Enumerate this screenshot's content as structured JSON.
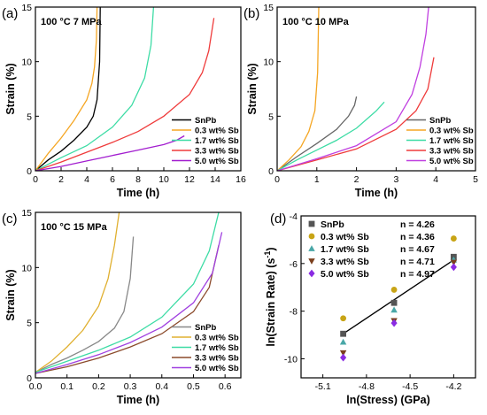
{
  "figure": {
    "background": "#ffffff",
    "line_color": "#000000"
  },
  "chart_data": [
    {
      "panel": "(a)",
      "type": "line",
      "annotation": "100 °C 7 MPa",
      "xlabel": "Time (h)",
      "ylabel": "Strain (%)",
      "xlim": [
        0,
        16
      ],
      "ylim": [
        0,
        15
      ],
      "xticks": [
        0,
        2,
        4,
        6,
        8,
        10,
        12,
        14,
        16
      ],
      "yticks": [
        0,
        5,
        10,
        15
      ],
      "legend_position": "lower-right",
      "series": [
        {
          "name": "SnPb",
          "color": "#000000",
          "x": [
            0,
            1,
            2,
            3,
            4,
            4.5,
            4.8,
            5.0,
            5.05
          ],
          "y": [
            0,
            1.0,
            1.8,
            2.8,
            4.0,
            5.0,
            6.5,
            10.0,
            15.0
          ]
        },
        {
          "name": "0.3 wt% Sb",
          "color": "#f5a623",
          "x": [
            0,
            1,
            2,
            3,
            4,
            4.4,
            4.6,
            4.75,
            4.8
          ],
          "y": [
            0,
            1.6,
            3.0,
            4.6,
            6.5,
            8.0,
            9.5,
            12.0,
            15.0
          ]
        },
        {
          "name": "1.7 wt% Sb",
          "color": "#3ddca5",
          "x": [
            0,
            2,
            4,
            6,
            7.5,
            8.5,
            9.0,
            9.2
          ],
          "y": [
            0,
            1.2,
            2.3,
            4.0,
            6.0,
            8.5,
            11.5,
            15.0
          ]
        },
        {
          "name": "3.3 wt% Sb",
          "color": "#ef3b3b",
          "x": [
            0,
            2,
            4,
            6,
            8,
            10,
            12,
            13,
            13.5,
            13.9
          ],
          "y": [
            0,
            0.8,
            1.7,
            2.6,
            3.6,
            5.0,
            7.0,
            9.0,
            11.0,
            14.0
          ]
        },
        {
          "name": "5.0 wt% Sb",
          "color": "#a21dcf",
          "x": [
            0,
            2,
            4,
            6,
            8,
            10,
            11,
            11.6
          ],
          "y": [
            0,
            0.4,
            0.9,
            1.4,
            1.9,
            2.4,
            2.8,
            3.2
          ]
        }
      ]
    },
    {
      "panel": "(b)",
      "type": "line",
      "annotation": "100 °C 10 MPa",
      "xlabel": "Time (h)",
      "ylabel": "Strain (%)",
      "xlim": [
        0,
        5
      ],
      "ylim": [
        0,
        15
      ],
      "xticks": [
        0,
        1,
        2,
        3,
        4,
        5
      ],
      "yticks": [
        0,
        5,
        10,
        15
      ],
      "legend_position": "lower-right",
      "series": [
        {
          "name": "SnPb",
          "color": "#666666",
          "x": [
            0,
            0.5,
            1.0,
            1.5,
            1.8,
            1.95,
            2.0
          ],
          "y": [
            0,
            1.3,
            2.5,
            3.8,
            5.0,
            6.0,
            6.8
          ]
        },
        {
          "name": "0.3 wt% Sb",
          "color": "#f5a623",
          "x": [
            0,
            0.3,
            0.6,
            0.8,
            0.95,
            1.02,
            1.05
          ],
          "y": [
            0,
            1.0,
            2.2,
            3.6,
            5.5,
            9.0,
            15.0
          ]
        },
        {
          "name": "1.7 wt% Sb",
          "color": "#3ddca5",
          "x": [
            0,
            0.5,
            1.0,
            1.5,
            2.0,
            2.5,
            2.7
          ],
          "y": [
            0,
            1.0,
            1.9,
            2.8,
            3.9,
            5.5,
            6.3
          ]
        },
        {
          "name": "3.3 wt% Sb",
          "color": "#ef3b3b",
          "x": [
            0,
            1,
            2,
            3,
            3.5,
            3.8,
            3.95
          ],
          "y": [
            0,
            1.0,
            2.0,
            3.8,
            5.5,
            7.5,
            10.4
          ]
        },
        {
          "name": "5.0 wt% Sb",
          "color": "#c040e0",
          "x": [
            0,
            1,
            2,
            3,
            3.4,
            3.6,
            3.75,
            3.82
          ],
          "y": [
            0,
            1.1,
            2.3,
            4.5,
            7.0,
            9.5,
            12.5,
            15.0
          ]
        }
      ]
    },
    {
      "panel": "(c)",
      "type": "line",
      "annotation": "100 °C 15 MPa",
      "xlabel": "Time (h)",
      "ylabel": "Strain (%)",
      "xlim": [
        0,
        0.65
      ],
      "ylim": [
        0,
        15
      ],
      "xticks": [
        0.0,
        0.1,
        0.2,
        0.3,
        0.4,
        0.5,
        0.6
      ],
      "yticks": [
        0,
        5,
        10,
        15
      ],
      "legend_position": "lower-right",
      "series": [
        {
          "name": "SnPb",
          "color": "#888888",
          "x": [
            0,
            0.05,
            0.1,
            0.15,
            0.2,
            0.25,
            0.28,
            0.3,
            0.31
          ],
          "y": [
            0.5,
            1.2,
            1.8,
            2.5,
            3.3,
            4.5,
            6.0,
            9.0,
            12.8
          ]
        },
        {
          "name": "0.3 wt% Sb",
          "color": "#e0b030",
          "x": [
            0,
            0.05,
            0.1,
            0.15,
            0.2,
            0.23,
            0.25,
            0.265
          ],
          "y": [
            0.5,
            1.5,
            2.8,
            4.3,
            6.5,
            9.0,
            12.0,
            15.0
          ]
        },
        {
          "name": "1.7 wt% Sb",
          "color": "#3ddca5",
          "x": [
            0,
            0.1,
            0.2,
            0.3,
            0.4,
            0.5,
            0.55,
            0.58
          ],
          "y": [
            0.5,
            1.5,
            2.5,
            3.7,
            5.5,
            8.5,
            11.5,
            15.0
          ]
        },
        {
          "name": "3.3 wt% Sb",
          "color": "#8b4a2b",
          "x": [
            0,
            0.1,
            0.2,
            0.3,
            0.4,
            0.5,
            0.55,
            0.58
          ],
          "y": [
            0.4,
            1.0,
            1.8,
            2.8,
            4.0,
            6.0,
            8.2,
            12.0
          ]
        },
        {
          "name": "5.0 wt% Sb",
          "color": "#a040e0",
          "x": [
            0,
            0.1,
            0.2,
            0.3,
            0.4,
            0.5,
            0.56,
            0.59
          ],
          "y": [
            0.4,
            1.2,
            2.1,
            3.2,
            4.6,
            6.8,
            9.5,
            13.2
          ]
        }
      ]
    },
    {
      "panel": "(d)",
      "type": "scatter",
      "xlabel": "ln(Stress) (GPa)",
      "ylabel": "ln(Strain Rate) (s",
      "ylabel_sup": "-1",
      "ylabel_tail": ")",
      "xlim": [
        -5.25,
        -4.05
      ],
      "ylim": [
        -10.8,
        -4
      ],
      "xticks": [
        -5.1,
        -4.8,
        -4.5,
        -4.2
      ],
      "xtick_labels": [
        "-5.1",
        "-4.8",
        "-4.5",
        "-4.2"
      ],
      "yticks": [
        -4,
        -6,
        -8,
        -10
      ],
      "ytick_labels": [
        "-4",
        "-6",
        "-8",
        "-10"
      ],
      "legend_position": "top-left",
      "x": [
        -4.96,
        -4.61,
        -4.2
      ],
      "series": [
        {
          "name": "SnPb",
          "n_label": "n = 4.26",
          "marker": "square",
          "color": "#555555",
          "y": [
            -8.95,
            -7.65,
            -5.72
          ]
        },
        {
          "name": "0.3 wt% Sb",
          "n_label": "n = 4.36",
          "marker": "circle",
          "color": "#c8a415",
          "y": [
            -8.3,
            -7.1,
            -4.95
          ]
        },
        {
          "name": "1.7 wt% Sb",
          "n_label": "n = 4.67",
          "marker": "triangle-up",
          "color": "#49a7a7",
          "y": [
            -9.3,
            -7.95,
            -5.85
          ]
        },
        {
          "name": "3.3 wt% Sb",
          "n_label": "n = 4.71",
          "marker": "triangle-down",
          "color": "#7b3f1d",
          "y": [
            -9.75,
            -8.4,
            -5.95
          ]
        },
        {
          "name": "5.0 wt% Sb",
          "n_label": "n = 4.97",
          "marker": "diamond",
          "color": "#8a2be2",
          "y": [
            -9.95,
            -8.5,
            -6.15
          ]
        }
      ],
      "fit_line": {
        "x": [
          -4.96,
          -4.2
        ],
        "y": [
          -8.95,
          -5.85
        ],
        "color": "#000000"
      }
    }
  ]
}
